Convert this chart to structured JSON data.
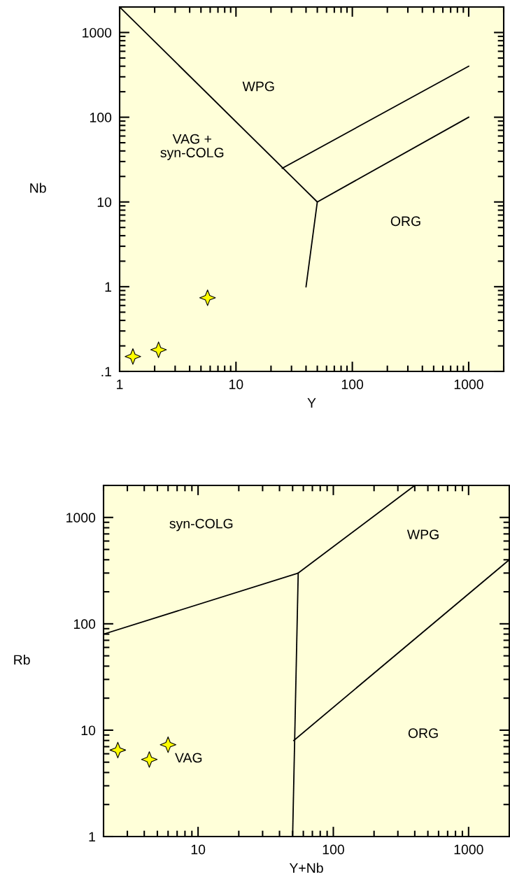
{
  "chart_data": [
    {
      "type": "scatter",
      "xlabel": "Y",
      "ylabel": "Nb",
      "log": "xy",
      "grid": false,
      "marker": "star",
      "xlim": [
        1,
        2000
      ],
      "xticks": [
        1,
        10,
        100,
        1000
      ],
      "ylim": [
        0.1,
        2000
      ],
      "yticks": [
        {
          "value": 0.1,
          "label": ".1"
        },
        1,
        10,
        100,
        1000
      ],
      "series": [
        {
          "color": "#ffff00",
          "x": [
            1.3,
            2.16,
            5.7
          ],
          "values": [
            0.15,
            0.18,
            0.74
          ]
        },
        {
          "type": "line",
          "color": "#000000",
          "marker": "none",
          "x": [
            1,
            50,
            40
          ],
          "values": [
            2000,
            10,
            1
          ]
        },
        {
          "type": "line",
          "color": "#000000",
          "marker": "none",
          "x": [
            25,
            1000
          ],
          "values": [
            25,
            400
          ]
        },
        {
          "type": "line",
          "color": "#000000",
          "marker": "none",
          "x": [
            50,
            1000
          ],
          "values": [
            10,
            100
          ]
        }
      ],
      "annotations": [
        "WPG",
        "VAG +\nsyn-COLG",
        "ORG"
      ]
    },
    {
      "type": "scatter",
      "xlabel": "Y+Nb",
      "ylabel": "Rb",
      "log": "xy",
      "grid": false,
      "marker": "star",
      "xlim": [
        2,
        2000
      ],
      "xticks": [
        10,
        100,
        1000
      ],
      "ylim": [
        1,
        2000
      ],
      "yticks": [
        1,
        10,
        100,
        1000
      ],
      "series": [
        {
          "color": "#ffff00",
          "x": [
            2.55,
            4.36,
            6.0
          ],
          "values": [
            6.5,
            5.3,
            7.3
          ]
        },
        {
          "type": "line",
          "color": "#000000",
          "marker": "none",
          "x": [
            2,
            55,
            400
          ],
          "values": [
            80,
            300,
            2000
          ]
        },
        {
          "type": "line",
          "color": "#000000",
          "marker": "none",
          "x": [
            55,
            50
          ],
          "values": [
            300,
            1
          ]
        },
        {
          "type": "line",
          "color": "#000000",
          "marker": "none",
          "x": [
            51,
            2000
          ],
          "values": [
            8,
            400
          ]
        }
      ],
      "annotations": [
        "syn-COLG",
        "WPG",
        "ORG",
        "VAG"
      ]
    }
  ]
}
